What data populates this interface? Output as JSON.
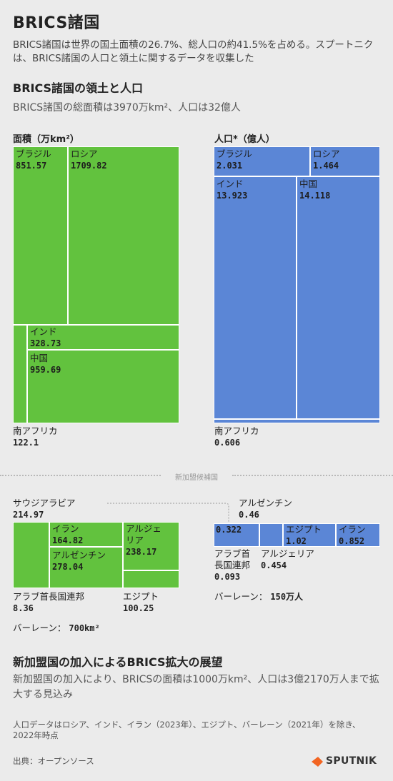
{
  "title": "BRICS諸国",
  "lead": "BRICS諸国は世界の国土面積の26.7%、総人口の約41.5%を占める。スプートニクは、BRICS諸国の人口と領土に関するデータを収集した",
  "section1": {
    "title": "BRICS諸国の領土と人口",
    "subtitle": "BRICS諸国の総面積は3970万km²、人口は32億人"
  },
  "colors": {
    "area": "#62c23e",
    "population": "#5b86d6",
    "background": "#ebebeb"
  },
  "chart_data": [
    {
      "type": "treemap",
      "title": "面積（万km²）",
      "items": [
        {
          "name": "ブラジル",
          "value": 851.57
        },
        {
          "name": "ロシア",
          "value": 1709.82
        },
        {
          "name": "インド",
          "value": 328.73
        },
        {
          "name": "中国",
          "value": 959.69
        },
        {
          "name": "南アフリカ",
          "value": 122.1
        }
      ]
    },
    {
      "type": "treemap",
      "title": "人口*（億人）",
      "items": [
        {
          "name": "ブラジル",
          "value": 2.031
        },
        {
          "name": "ロシア",
          "value": 1.464
        },
        {
          "name": "インド",
          "value": 13.923
        },
        {
          "name": "中国",
          "value": 14.118
        },
        {
          "name": "南アフリカ",
          "value": 0.606
        }
      ]
    },
    {
      "type": "treemap",
      "title": "",
      "items": [
        {
          "name": "サウジアラビア",
          "value": 214.97
        },
        {
          "name": "イラン",
          "value": 164.82
        },
        {
          "name": "アルジェリア",
          "value": 238.17
        },
        {
          "name": "アルゼンチン",
          "value": 278.04
        },
        {
          "name": "アラブ首長国連邦",
          "value": 8.36
        },
        {
          "name": "エジプト",
          "value": 100.25
        }
      ],
      "note": {
        "label": "バーレーン：",
        "value": "700km²"
      }
    },
    {
      "type": "treemap",
      "title": "",
      "items": [
        {
          "name": "アルゼンチン",
          "value": 0.46
        },
        {
          "name": "サウジアラビア",
          "value": 0.322
        },
        {
          "name": "エジプト",
          "value": 1.02
        },
        {
          "name": "イラン",
          "value": 0.852
        },
        {
          "name": "アラブ首長国連邦",
          "value": 0.093
        },
        {
          "name": "アルジェリア",
          "value": 0.454
        }
      ],
      "note": {
        "label": "バーレーン：",
        "value": "150万人"
      }
    }
  ],
  "labels": {
    "area_title": "面積（万km²）",
    "pop_title": "人口*（億人）",
    "brazil": "ブラジル",
    "russia": "ロシア",
    "india": "インド",
    "china": "中国",
    "south_africa": "南アフリカ",
    "saudi": "サウジアラビア",
    "iran": "イラン",
    "algeria_split1": "アルジェ",
    "algeria_split2": "リア",
    "argentina": "アルゼンチン",
    "uae": "アラブ首長国連邦",
    "uae_split1": "アラブ首",
    "uae_split2": "長国連邦",
    "egypt": "エジプト",
    "algeria": "アルジェリア",
    "area_brazil": "851.57",
    "area_russia": "1709.82",
    "area_india": "328.73",
    "area_china": "959.69",
    "area_sa": "122.1",
    "pop_brazil": "2.031",
    "pop_russia": "1.464",
    "pop_india": "13.923",
    "pop_china": "14.118",
    "pop_sa": "0.606",
    "n_area_saudi": "214.97",
    "n_area_iran": "164.82",
    "n_area_algeria": "238.17",
    "n_area_argentina": "278.04",
    "n_area_uae": "8.36",
    "n_area_egypt": "100.25",
    "n_pop_argentina": "0.46",
    "n_pop_saudi": "0.322",
    "n_pop_egypt": "1.02",
    "n_pop_iran": "0.852",
    "n_pop_uae": "0.093",
    "n_pop_algeria": "0.454",
    "bahrain_area_label": "バーレーン：",
    "bahrain_area_value": "700km²",
    "bahrain_pop_label": "バーレーン：",
    "bahrain_pop_value": "150万人"
  },
  "divider_label": "新加盟候補国",
  "section2": {
    "title": "新加盟国の加入によるBRICS拡大の展望",
    "body": "新加盟国の加入により、BRICSの面積は1000万km²、人口は3億2170万人まで拡大する見込み"
  },
  "footnote": "人口データはロシア、インド、イラン（2023年）、エジプト、バーレーン（2021年）を除き、2022年時点",
  "source": "出典：オープンソース",
  "logo": "SPUTNIK"
}
